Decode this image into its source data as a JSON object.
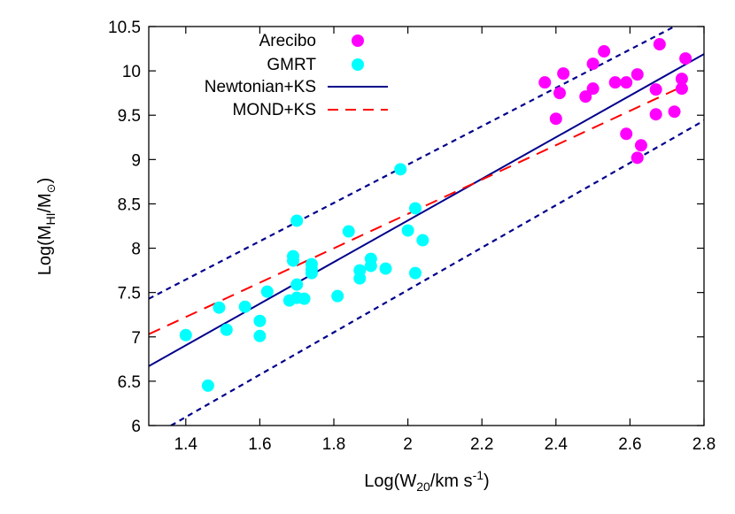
{
  "chart_data": {
    "type": "scatter",
    "title": "",
    "xlabel": {
      "prefix": "Log(W",
      "sub": "20",
      "mid": "/km s",
      "sup": "-1",
      "suffix": ")"
    },
    "ylabel": {
      "prefix": "Log(M",
      "sub": "HI",
      "mid": "/M",
      "sub2": "⊙",
      "suffix": ")"
    },
    "xlim": [
      1.3,
      2.8
    ],
    "ylim": [
      6.0,
      10.5
    ],
    "xticks": [
      1.4,
      1.6,
      1.8,
      2.0,
      2.2,
      2.4,
      2.6,
      2.8
    ],
    "xtick_labels": [
      "1.4",
      "1.6",
      "1.8",
      "2",
      "2.2",
      "2.4",
      "2.6",
      "2.8"
    ],
    "yticks": [
      6.0,
      6.5,
      7.0,
      7.5,
      8.0,
      8.5,
      9.0,
      9.5,
      10.0,
      10.5
    ],
    "ytick_labels": [
      "6",
      "6.5",
      "7",
      "7.5",
      "8",
      "8.5",
      "9",
      "9.5",
      "10",
      "10.5"
    ],
    "legend_position": "top-left",
    "series": [
      {
        "name": "Arecibo",
        "kind": "points",
        "color": "#ff00ff",
        "points": [
          [
            2.37,
            9.87
          ],
          [
            2.4,
            9.46
          ],
          [
            2.41,
            9.75
          ],
          [
            2.42,
            9.97
          ],
          [
            2.48,
            9.71
          ],
          [
            2.5,
            9.8
          ],
          [
            2.5,
            10.08
          ],
          [
            2.53,
            10.22
          ],
          [
            2.56,
            9.87
          ],
          [
            2.59,
            9.87
          ],
          [
            2.59,
            9.29
          ],
          [
            2.62,
            9.96
          ],
          [
            2.62,
            9.02
          ],
          [
            2.63,
            9.16
          ],
          [
            2.67,
            9.79
          ],
          [
            2.67,
            9.51
          ],
          [
            2.68,
            10.3
          ],
          [
            2.72,
            9.54
          ],
          [
            2.74,
            9.91
          ],
          [
            2.74,
            9.8
          ],
          [
            2.75,
            10.14
          ]
        ]
      },
      {
        "name": "GMRT",
        "kind": "points",
        "color": "#00ffff",
        "points": [
          [
            1.4,
            7.02
          ],
          [
            1.46,
            6.45
          ],
          [
            1.49,
            7.33
          ],
          [
            1.51,
            7.08
          ],
          [
            1.56,
            7.34
          ],
          [
            1.6,
            7.18
          ],
          [
            1.6,
            7.01
          ],
          [
            1.62,
            7.51
          ],
          [
            1.68,
            7.41
          ],
          [
            1.69,
            7.86
          ],
          [
            1.69,
            7.91
          ],
          [
            1.7,
            8.31
          ],
          [
            1.7,
            7.59
          ],
          [
            1.7,
            7.44
          ],
          [
            1.72,
            7.43
          ],
          [
            1.74,
            7.82
          ],
          [
            1.74,
            7.72
          ],
          [
            1.74,
            7.76
          ],
          [
            1.81,
            7.46
          ],
          [
            1.84,
            8.19
          ],
          [
            1.87,
            7.66
          ],
          [
            1.87,
            7.75
          ],
          [
            1.9,
            7.88
          ],
          [
            1.9,
            7.8
          ],
          [
            1.94,
            7.77
          ],
          [
            1.98,
            8.89
          ],
          [
            2.0,
            8.2
          ],
          [
            2.02,
            8.45
          ],
          [
            2.02,
            7.72
          ],
          [
            2.04,
            8.09
          ]
        ]
      },
      {
        "name": "Newtonian+KS",
        "kind": "line",
        "color": "#00008b",
        "style": "solid",
        "points": [
          [
            1.3,
            6.67
          ],
          [
            2.8,
            10.19
          ]
        ]
      },
      {
        "name": "MOND+KS",
        "kind": "line",
        "color": "#ff0000",
        "style": "dashed",
        "points": [
          [
            1.3,
            7.03
          ],
          [
            2.75,
            9.84
          ]
        ]
      },
      {
        "name": "",
        "kind": "line",
        "color": "#00008b",
        "style": "dotted",
        "points": [
          [
            1.3,
            7.43
          ],
          [
            2.72,
            10.5
          ]
        ]
      },
      {
        "name": "",
        "kind": "line",
        "color": "#00008b",
        "style": "dotted",
        "points": [
          [
            1.36,
            6.0
          ],
          [
            2.8,
            9.44
          ]
        ]
      }
    ]
  }
}
